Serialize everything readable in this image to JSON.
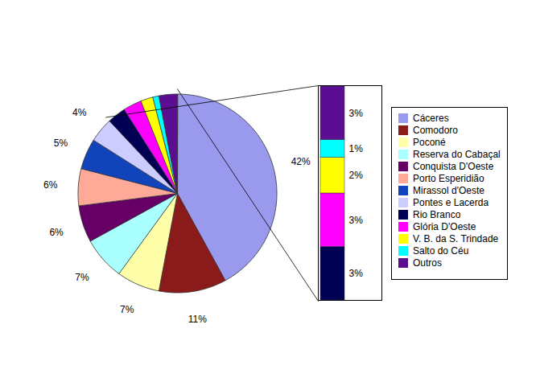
{
  "chart_data": [
    {
      "type": "pie",
      "categories": [
        "Cáceres",
        "Comodoro",
        "Poconé",
        "Reserva do Cabaçal",
        "Conquista D'Oeste",
        "Porto Esperidião",
        "Mirassol d'Oeste",
        "Pontes e Lacerda",
        "Rio Branco",
        "Glória D'Oeste",
        "V. B. da S. Trindade",
        "Salto do Céu",
        "Outros"
      ],
      "values": [
        42,
        11,
        7,
        7,
        6,
        6,
        5,
        4,
        3,
        3,
        2,
        1,
        3
      ],
      "value_labels": [
        "42%",
        "11%",
        "7%",
        "7%",
        "6%",
        "6%",
        "5%",
        "4%",
        null,
        null,
        null,
        null,
        null
      ],
      "colors": [
        "#9999EE",
        "#8B1A1A",
        "#FFFFAA",
        "#AAFFFF",
        "#660066",
        "#FFAA99",
        "#1144BB",
        "#CCCCFF",
        "#000055",
        "#FF00FF",
        "#FFFF00",
        "#00FFFF",
        "#5B0E91"
      ],
      "data_labels": true,
      "legend": "right"
    },
    {
      "type": "bar",
      "stacked": true,
      "categories": [
        null
      ],
      "series": [
        {
          "name": "Rio Branco",
          "color": "#000055",
          "values": [
            3
          ],
          "value_labels": [
            "3%"
          ]
        },
        {
          "name": "Glória D'Oeste",
          "color": "#FF00FF",
          "values": [
            3
          ],
          "value_labels": [
            "3%"
          ]
        },
        {
          "name": "V. B. da S. Trindade",
          "color": "#FFFF00",
          "values": [
            2
          ],
          "value_labels": [
            "2%"
          ]
        },
        {
          "name": "Salto do Céu",
          "color": "#00FFFF",
          "values": [
            1
          ],
          "value_labels": [
            "1%"
          ]
        },
        {
          "name": "Outros",
          "color": "#5B0E91",
          "values": [
            3
          ],
          "value_labels": [
            "3%"
          ]
        }
      ],
      "ylim": [
        0,
        12
      ],
      "data_labels": true,
      "tick_labels": false
    }
  ]
}
